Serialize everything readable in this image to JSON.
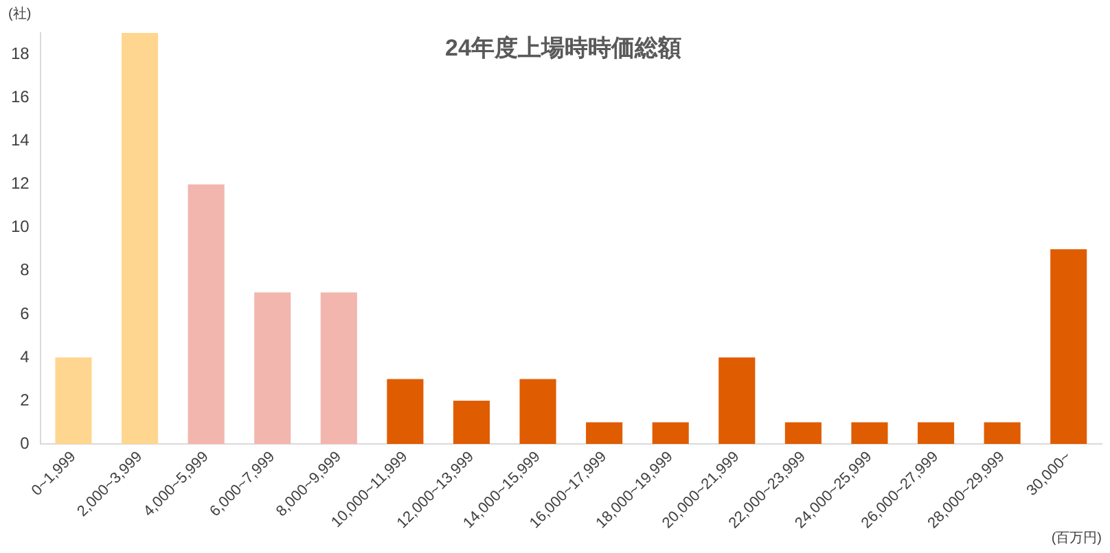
{
  "chart_data": {
    "type": "bar",
    "title": "24年度上場時時価総額",
    "xlabel": "(百万円)",
    "ylabel": "(社)",
    "categories": [
      "0~1,999",
      "2,000~3,999",
      "4,000~5,999",
      "6,000~7,999",
      "8,000~9,999",
      "10,000~11,999",
      "12,000~13,999",
      "14,000~15,999",
      "16,000~17,999",
      "18,000~19,999",
      "20,000~21,999",
      "22,000~23,999",
      "24,000~25,999",
      "26,000~27,999",
      "28,000~29,999",
      "30,000~"
    ],
    "values": [
      4,
      19,
      12,
      7,
      7,
      3,
      2,
      3,
      1,
      1,
      4,
      1,
      1,
      1,
      1,
      9
    ],
    "colors": [
      "#ffd68f",
      "#ffd68f",
      "#f2b6ae",
      "#f2b6ae",
      "#f2b6ae",
      "#e05c00",
      "#e05c00",
      "#e05c00",
      "#e05c00",
      "#e05c00",
      "#e05c00",
      "#e05c00",
      "#e05c00",
      "#e05c00",
      "#e05c00",
      "#e05c00"
    ],
    "ylim": [
      0,
      19
    ],
    "yticks": [
      0,
      2,
      4,
      6,
      8,
      10,
      12,
      14,
      16,
      18
    ],
    "grid": false,
    "legend": false
  }
}
